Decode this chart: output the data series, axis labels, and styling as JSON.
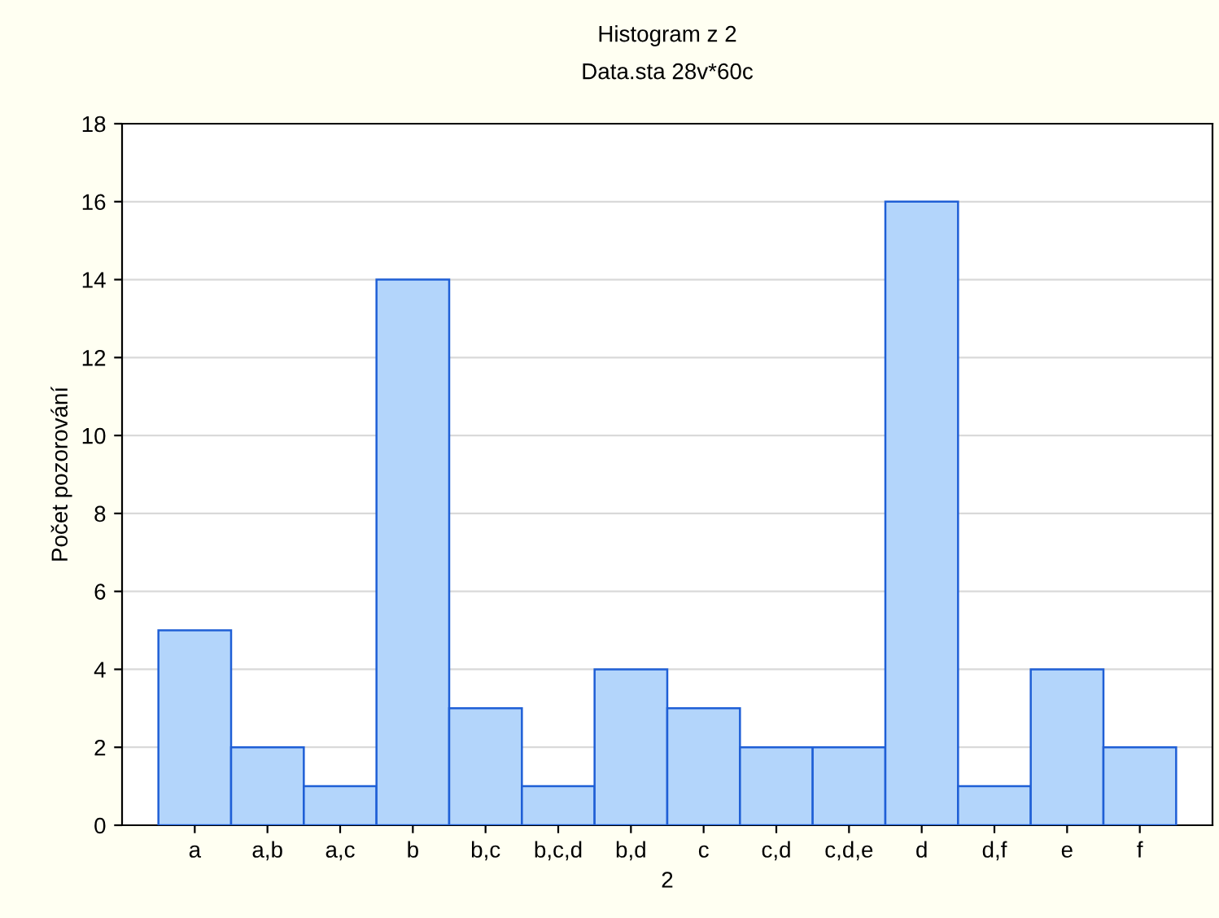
{
  "chart_data": {
    "type": "bar",
    "title": "Histogram z 2",
    "subtitle": "Data.sta 28v*60c",
    "xlabel": "2",
    "ylabel": "Počet pozorování",
    "categories": [
      "a",
      "a,b",
      "a,c",
      "b",
      "b,c",
      "b,c,d",
      "b,d",
      "c",
      "c,d",
      "c,d,e",
      "d",
      "d,f",
      "e",
      "f"
    ],
    "values": [
      5,
      2,
      1,
      14,
      3,
      1,
      4,
      3,
      2,
      2,
      16,
      1,
      4,
      2
    ],
    "color": "#b3d5fb",
    "ylim": [
      0,
      18
    ],
    "yticks": [
      0,
      2,
      4,
      6,
      8,
      10,
      12,
      14,
      16,
      18
    ],
    "grid": "y"
  }
}
